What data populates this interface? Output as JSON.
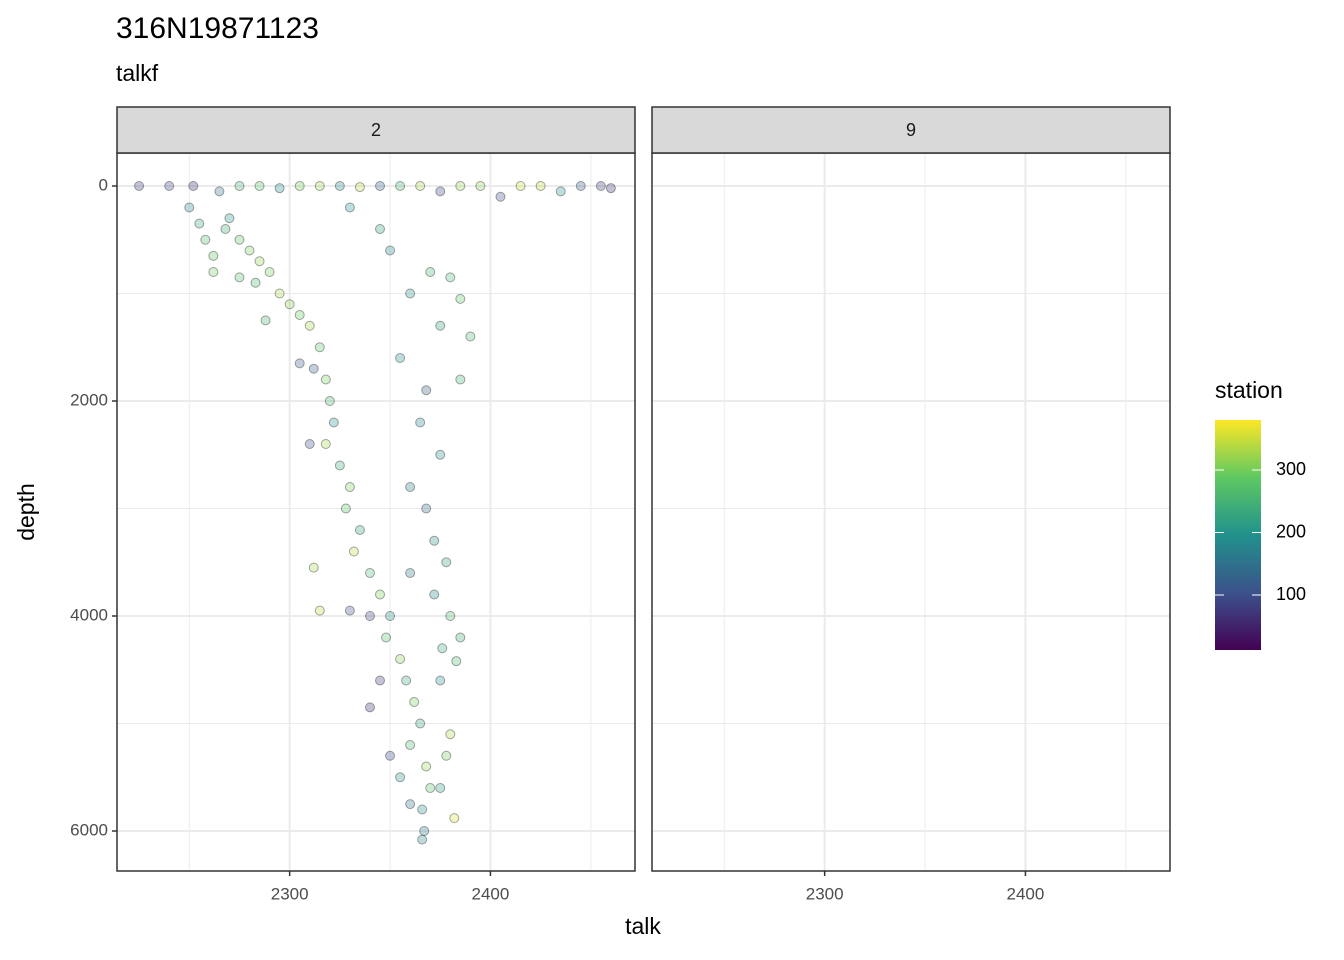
{
  "chart_data": {
    "type": "scatter",
    "title": "316N19871123",
    "subtitle": "talkf",
    "xlabel": "talk",
    "ylabel": "depth",
    "xlim": [
      2214,
      2472
    ],
    "ylim": [
      6372,
      -307
    ],
    "xticks": [
      2300,
      2400
    ],
    "yticks": [
      0,
      2000,
      4000,
      6000
    ],
    "x_minor_grid": [
      2250,
      2350,
      2450
    ],
    "y_minor_grid": [
      1000,
      3000,
      5000
    ],
    "grid": true,
    "color_label": "station",
    "colorlim": [
      12,
      380
    ],
    "colorticks": [
      100,
      200,
      300
    ],
    "palette": [
      "#440154",
      "#3b528b",
      "#21918c",
      "#5ec962",
      "#fde725"
    ],
    "panels": [
      {
        "label": "2",
        "x": [
          2225,
          2240,
          2252,
          2265,
          2275,
          2285,
          2295,
          2305,
          2315,
          2325,
          2335,
          2345,
          2355,
          2365,
          2375,
          2385,
          2395,
          2405,
          2415,
          2425,
          2435,
          2445,
          2455,
          2460,
          2270,
          2268,
          2275,
          2280,
          2285,
          2290,
          2283,
          2295,
          2300,
          2305,
          2288,
          2310,
          2315,
          2312,
          2318,
          2320,
          2322,
          2318,
          2325,
          2330,
          2328,
          2335,
          2332,
          2340,
          2345,
          2350,
          2348,
          2355,
          2358,
          2362,
          2365,
          2360,
          2368,
          2370,
          2366,
          2367,
          2366,
          2330,
          2345,
          2350,
          2370,
          2380,
          2360,
          2385,
          2375,
          2390,
          2355,
          2368,
          2385,
          2365,
          2375,
          2360,
          2368,
          2372,
          2378,
          2360,
          2372,
          2380,
          2376,
          2383,
          2385,
          2375,
          2380,
          2378,
          2375,
          2382,
          2340,
          2345,
          2340,
          2350,
          2355,
          2360,
          2312,
          2315,
          2330,
          2305,
          2310,
          2250,
          2255,
          2258,
          2262,
          2262,
          2275
        ],
        "y": [
          0,
          0,
          0,
          50,
          0,
          0,
          20,
          0,
          0,
          0,
          10,
          0,
          0,
          0,
          50,
          0,
          0,
          100,
          0,
          0,
          50,
          0,
          0,
          20,
          300,
          400,
          500,
          600,
          700,
          800,
          900,
          1000,
          1100,
          1200,
          1250,
          1300,
          1500,
          1700,
          1800,
          2000,
          2200,
          2400,
          2600,
          2800,
          3000,
          3200,
          3400,
          3600,
          3800,
          4000,
          4200,
          4400,
          4600,
          4800,
          5000,
          5200,
          5400,
          5600,
          5800,
          6000,
          6080,
          200,
          400,
          600,
          800,
          850,
          1000,
          1050,
          1300,
          1400,
          1600,
          1900,
          1800,
          2200,
          2500,
          2800,
          3000,
          3300,
          3500,
          3600,
          3800,
          4000,
          4300,
          4420,
          4200,
          4600,
          5100,
          5300,
          5600,
          5880,
          4000,
          4600,
          4850,
          5300,
          5500,
          5750,
          3550,
          3950,
          3950,
          1650,
          2400,
          200,
          350,
          500,
          650,
          800,
          850
        ],
        "station": [
          80,
          90,
          60,
          150,
          250,
          280,
          200,
          300,
          320,
          180,
          340,
          120,
          250,
          330,
          90,
          320,
          310,
          100,
          350,
          340,
          200,
          120,
          80,
          60,
          200,
          240,
          280,
          300,
          320,
          300,
          260,
          330,
          310,
          290,
          250,
          330,
          280,
          120,
          300,
          260,
          200,
          330,
          240,
          300,
          280,
          220,
          340,
          260,
          300,
          200,
          270,
          310,
          240,
          300,
          220,
          260,
          320,
          280,
          200,
          160,
          180,
          200,
          220,
          180,
          250,
          260,
          200,
          280,
          220,
          260,
          200,
          120,
          250,
          180,
          200,
          170,
          140,
          200,
          220,
          160,
          180,
          260,
          240,
          260,
          240,
          200,
          330,
          300,
          220,
          360,
          90,
          80,
          60,
          90,
          200,
          150,
          330,
          340,
          100,
          120,
          100,
          180,
          230,
          260,
          280,
          300,
          270
        ]
      },
      {
        "label": "9",
        "x": [],
        "y": [],
        "station": []
      }
    ]
  }
}
